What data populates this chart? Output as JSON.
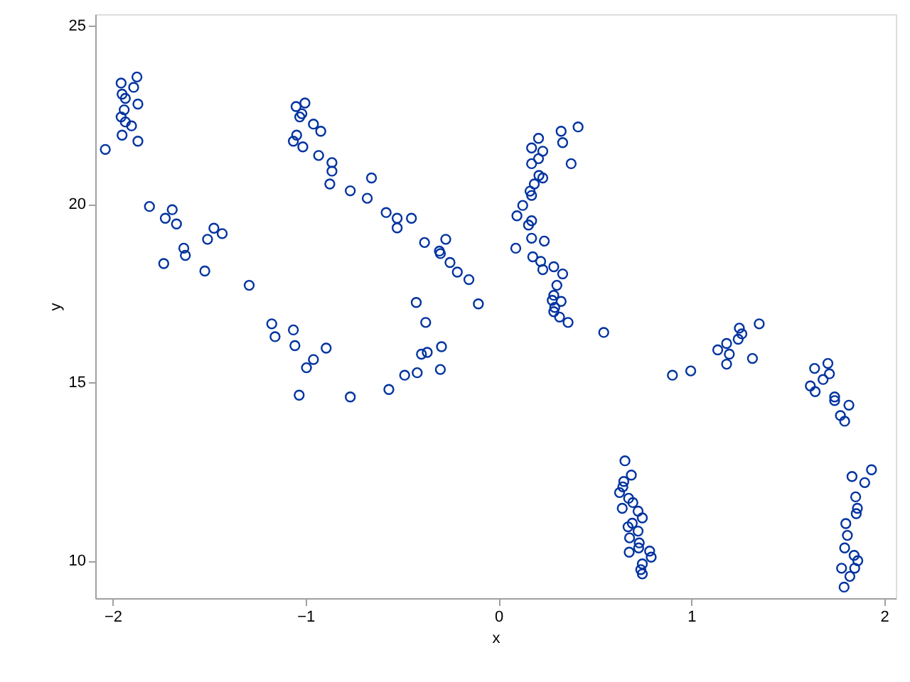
{
  "chart_data": {
    "type": "scatter",
    "xlabel": "x",
    "ylabel": "y",
    "xlim": [
      -2.09,
      2.06
    ],
    "ylim": [
      8.95,
      25.32
    ],
    "xticks": [
      -2,
      -1,
      0,
      1,
      2
    ],
    "yticks": [
      10,
      15,
      20,
      25
    ],
    "marker": "circle",
    "series": [
      {
        "color": "#0033a0",
        "x": [
          -1.874,
          -1.956,
          -1.891,
          -1.951,
          -1.934,
          -1.869,
          -1.94,
          -1.956,
          -1.934,
          -1.902,
          -1.951,
          -1.869,
          -2.038,
          -1.809,
          -1.691,
          -1.727,
          -1.669,
          -1.475,
          -1.508,
          -1.432,
          -1.631,
          -1.623,
          -1.735,
          -1.522,
          -1.292,
          -1.175,
          -1.063,
          -1.158,
          -1.055,
          -0.893,
          -0.959,
          -0.995,
          -1.033,
          -0.768,
          -0.568,
          -0.486,
          -0.421,
          -0.301,
          -0.295,
          -0.399,
          -0.369,
          -0.377,
          -0.426,
          -1.003,
          -1.049,
          -1.019,
          -1.03,
          -0.959,
          -0.921,
          -1.046,
          -1.063,
          -1.014,
          -0.932,
          -0.863,
          -0.863,
          -0.874,
          -0.658,
          -0.768,
          -0.68,
          -0.582,
          -0.525,
          -0.451,
          -0.525,
          -0.383,
          -0.273,
          -0.306,
          -0.301,
          -0.251,
          -0.213,
          -0.153,
          -0.104,
          0.413,
          0.325,
          0.208,
          0.333,
          0.172,
          0.23,
          0.208,
          0.172,
          0.377,
          0.21,
          0.23,
          0.186,
          0.164,
          0.172,
          0.126,
          0.096,
          0.172,
          0.156,
          0.172,
          0.238,
          0.09,
          0.178,
          0.219,
          0.23,
          0.287,
          0.333,
          0.303,
          0.287,
          0.279,
          0.325,
          0.292,
          0.287,
          0.317,
          0.361,
          0.546,
          0.902,
          0.997,
          1.137,
          1.183,
          1.197,
          1.183,
          1.249,
          1.262,
          1.243,
          1.352,
          1.317,
          1.639,
          1.708,
          1.716,
          1.683,
          1.617,
          1.642,
          1.743,
          1.743,
          1.817,
          1.773,
          1.795,
          0.656,
          0.689,
          0.65,
          0.645,
          0.628,
          0.675,
          0.697,
          0.642,
          0.724,
          0.746,
          0.694,
          0.672,
          0.724,
          0.68,
          0.73,
          0.727,
          0.678,
          0.784,
          0.792,
          0.746,
          0.738,
          0.746,
          1.934,
          1.833,
          1.899,
          1.852,
          1.861,
          1.855,
          1.801,
          1.809,
          1.795,
          1.844,
          1.863,
          1.847,
          1.779,
          1.822,
          1.792
        ],
        "values": [
          23.56,
          23.39,
          23.27,
          23.08,
          22.96,
          22.8,
          22.64,
          22.44,
          22.3,
          22.19,
          21.93,
          21.76,
          21.53,
          19.93,
          19.84,
          19.6,
          19.44,
          19.32,
          19.01,
          19.17,
          18.76,
          18.56,
          18.33,
          18.12,
          17.72,
          16.64,
          16.47,
          16.28,
          16.03,
          15.96,
          15.64,
          15.41,
          14.64,
          14.59,
          14.8,
          15.2,
          15.27,
          15.36,
          16.0,
          15.79,
          15.84,
          16.68,
          17.24,
          22.83,
          22.73,
          22.53,
          22.44,
          22.24,
          22.04,
          21.93,
          21.76,
          21.6,
          21.36,
          21.16,
          20.92,
          20.56,
          20.73,
          20.37,
          20.16,
          19.76,
          19.6,
          19.6,
          19.33,
          18.92,
          19.01,
          18.68,
          18.61,
          18.36,
          18.09,
          17.88,
          17.2,
          22.16,
          22.04,
          21.84,
          21.72,
          21.57,
          21.48,
          21.27,
          21.13,
          21.13,
          20.8,
          20.73,
          20.56,
          20.36,
          20.24,
          19.96,
          19.67,
          19.53,
          19.41,
          19.04,
          18.96,
          18.76,
          18.52,
          18.39,
          18.16,
          18.24,
          18.04,
          17.72,
          17.44,
          17.3,
          17.27,
          17.1,
          16.98,
          16.83,
          16.68,
          16.4,
          15.2,
          15.32,
          15.91,
          16.09,
          15.79,
          15.51,
          16.52,
          16.36,
          16.21,
          16.64,
          15.67,
          15.39,
          15.53,
          15.24,
          15.08,
          14.9,
          14.74,
          14.59,
          14.49,
          14.36,
          14.07,
          13.91,
          12.8,
          12.4,
          12.22,
          12.07,
          11.91,
          11.75,
          11.63,
          11.47,
          11.39,
          11.2,
          11.05,
          10.95,
          10.83,
          10.64,
          10.5,
          10.36,
          10.24,
          10.27,
          10.1,
          9.91,
          9.75,
          9.63,
          12.55,
          12.36,
          12.19,
          11.79,
          11.47,
          11.32,
          11.04,
          10.71,
          10.36,
          10.15,
          10.0,
          9.79,
          9.79,
          9.56,
          9.26
        ]
      }
    ]
  }
}
